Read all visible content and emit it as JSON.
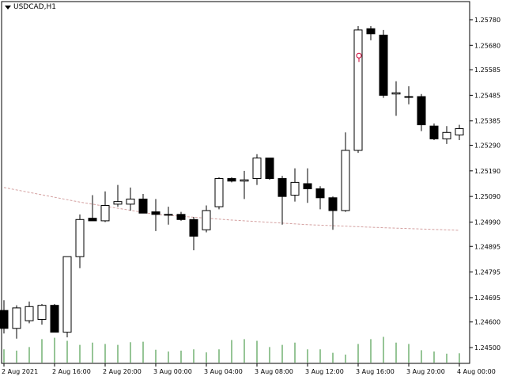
{
  "window": {
    "symbol_label": "USDCAD,H1",
    "colors": {
      "background": "#ffffff",
      "frame": "#000000",
      "bull_fill": "#ffffff",
      "bear_fill": "#000000",
      "candle_outline": "#000000",
      "volume": "#2e8b2e",
      "moving_average": "#d4a0a0",
      "marker": "#cc0033"
    },
    "icons": {
      "dropdown": "triangle-down-icon",
      "marker": "alert-circle-icon"
    }
  },
  "chart_data": {
    "type": "candlestick",
    "symbol": "USDCAD",
    "timeframe": "H1",
    "ylim": [
      1.2446,
      1.2582
    ],
    "price_ticks": [
      "1.25780",
      "1.25680",
      "1.25585",
      "1.25485",
      "1.25385",
      "1.25290",
      "1.25190",
      "1.25090",
      "1.24990",
      "1.24895",
      "1.24795",
      "1.24695",
      "1.24600",
      "1.24500"
    ],
    "time_labels": [
      "2 Aug 2021",
      "2 Aug 16:00",
      "2 Aug 20:00",
      "3 Aug 00:00",
      "3 Aug 04:00",
      "3 Aug 08:00",
      "3 Aug 12:00",
      "3 Aug 16:00",
      "3 Aug 20:00",
      "4 Aug 00:00"
    ],
    "candles": [
      {
        "o": 1.24645,
        "h": 1.24685,
        "l": 1.24555,
        "c": 1.24575
      },
      {
        "o": 1.24575,
        "h": 1.24665,
        "l": 1.24535,
        "c": 1.24655
      },
      {
        "o": 1.24605,
        "h": 1.2468,
        "l": 1.24595,
        "c": 1.2466
      },
      {
        "o": 1.2461,
        "h": 1.2467,
        "l": 1.2459,
        "c": 1.24665
      },
      {
        "o": 1.24665,
        "h": 1.2467,
        "l": 1.2456,
        "c": 1.2456
      },
      {
        "o": 1.2456,
        "h": 1.24855,
        "l": 1.2454,
        "c": 1.24855
      },
      {
        "o": 1.24855,
        "h": 1.2502,
        "l": 1.2481,
        "c": 1.25
      },
      {
        "o": 1.25005,
        "h": 1.25095,
        "l": 1.24995,
        "c": 1.24995
      },
      {
        "o": 1.24995,
        "h": 1.2511,
        "l": 1.2499,
        "c": 1.25055
      },
      {
        "o": 1.2506,
        "h": 1.25135,
        "l": 1.2505,
        "c": 1.2507
      },
      {
        "o": 1.2506,
        "h": 1.25125,
        "l": 1.25035,
        "c": 1.2508
      },
      {
        "o": 1.2508,
        "h": 1.251,
        "l": 1.2503,
        "c": 1.25025
      },
      {
        "o": 1.2503,
        "h": 1.2508,
        "l": 1.24955,
        "c": 1.2502
      },
      {
        "o": 1.2502,
        "h": 1.2505,
        "l": 1.2498,
        "c": 1.2502
      },
      {
        "o": 1.2502,
        "h": 1.2503,
        "l": 1.24995,
        "c": 1.25
      },
      {
        "o": 1.25,
        "h": 1.2501,
        "l": 1.2488,
        "c": 1.24935
      },
      {
        "o": 1.2496,
        "h": 1.25055,
        "l": 1.2495,
        "c": 1.25035
      },
      {
        "o": 1.2505,
        "h": 1.25165,
        "l": 1.2504,
        "c": 1.2516
      },
      {
        "o": 1.2516,
        "h": 1.25165,
        "l": 1.25145,
        "c": 1.2515
      },
      {
        "o": 1.2515,
        "h": 1.2519,
        "l": 1.2508,
        "c": 1.25155
      },
      {
        "o": 1.2516,
        "h": 1.25255,
        "l": 1.25135,
        "c": 1.2524
      },
      {
        "o": 1.2524,
        "h": 1.2524,
        "l": 1.25155,
        "c": 1.2516
      },
      {
        "o": 1.2516,
        "h": 1.2517,
        "l": 1.2498,
        "c": 1.2509
      },
      {
        "o": 1.25095,
        "h": 1.252,
        "l": 1.2507,
        "c": 1.25145
      },
      {
        "o": 1.2514,
        "h": 1.252,
        "l": 1.25065,
        "c": 1.2512
      },
      {
        "o": 1.2512,
        "h": 1.2513,
        "l": 1.2504,
        "c": 1.25085
      },
      {
        "o": 1.25085,
        "h": 1.2509,
        "l": 1.2496,
        "c": 1.25035
      },
      {
        "o": 1.25035,
        "h": 1.2534,
        "l": 1.2503,
        "c": 1.2527
      },
      {
        "o": 1.2527,
        "h": 1.25755,
        "l": 1.2526,
        "c": 1.2574
      },
      {
        "o": 1.25745,
        "h": 1.25755,
        "l": 1.257,
        "c": 1.25725
      },
      {
        "o": 1.2572,
        "h": 1.2574,
        "l": 1.25475,
        "c": 1.25485
      },
      {
        "o": 1.2549,
        "h": 1.2554,
        "l": 1.25405,
        "c": 1.25495
      },
      {
        "o": 1.2548,
        "h": 1.2552,
        "l": 1.2545,
        "c": 1.2548
      },
      {
        "o": 1.2548,
        "h": 1.2549,
        "l": 1.25345,
        "c": 1.2537
      },
      {
        "o": 1.25365,
        "h": 1.25375,
        "l": 1.2531,
        "c": 1.25315
      },
      {
        "o": 1.25315,
        "h": 1.25365,
        "l": 1.25295,
        "c": 1.2534
      },
      {
        "o": 1.2533,
        "h": 1.2537,
        "l": 1.2531,
        "c": 1.25355
      }
    ],
    "volumes": [
      0.3,
      0.27,
      0.35,
      0.53,
      0.56,
      0.49,
      0.4,
      0.45,
      0.42,
      0.4,
      0.46,
      0.47,
      0.29,
      0.25,
      0.27,
      0.3,
      0.23,
      0.3,
      0.51,
      0.53,
      0.49,
      0.35,
      0.4,
      0.45,
      0.3,
      0.3,
      0.22,
      0.18,
      0.42,
      0.53,
      0.58,
      0.45,
      0.42,
      0.28,
      0.25,
      0.2,
      0.21
    ],
    "moving_average": [
      1.25125,
      1.25068,
      1.2502,
      1.24998,
      1.2498,
      1.24968,
      1.24958
    ]
  }
}
